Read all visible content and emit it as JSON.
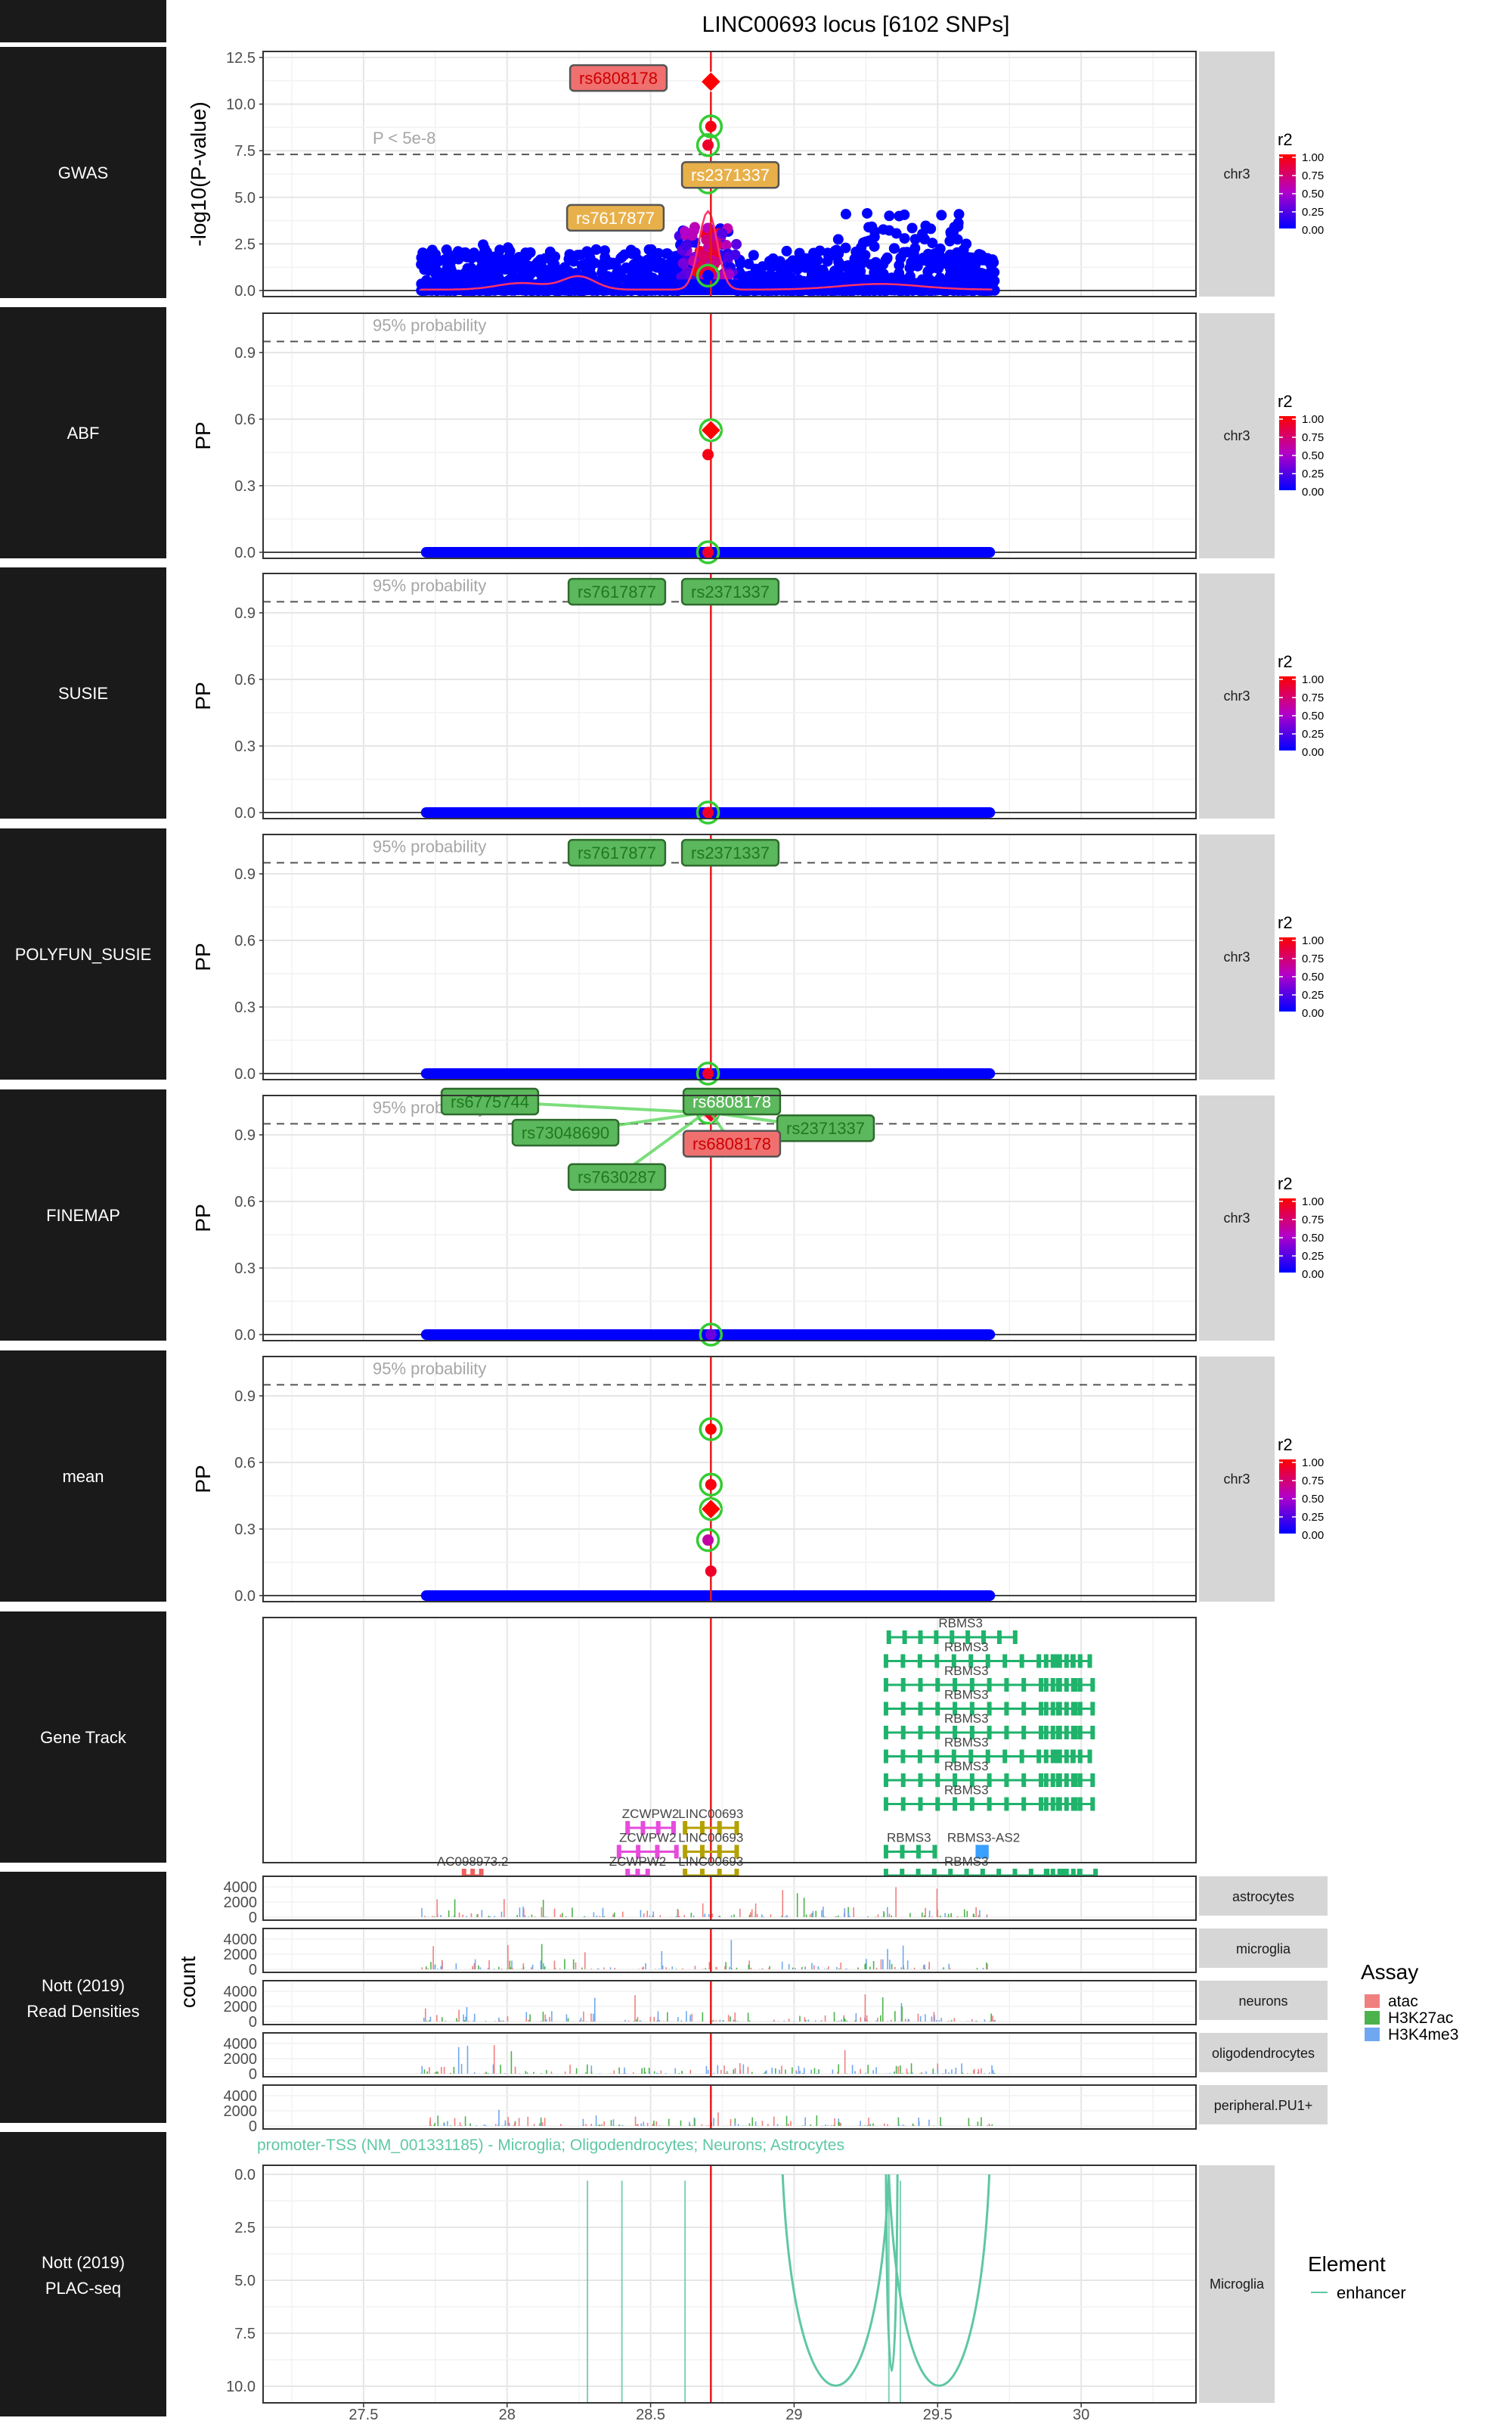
{
  "title": "LINC00693 locus [6102 SNPs]",
  "colors": {
    "row_label_bg": "#1a1a1a",
    "lead_line": "#e41a1c",
    "snp_low": "#0000ff",
    "snp_high": "#ff0000",
    "credible_ring": "#33cc33",
    "gene_green": "#1fb36b",
    "gene_magenta": "#e64bdc",
    "gene_olive": "#b3a100",
    "gene_red": "#f0605d",
    "gene_blue": "#3aa0ff",
    "plac_line": "#5ec7a5",
    "atac": "#f08080",
    "h3k27ac": "#4cb34c",
    "h3k4me3": "#6fa8f0",
    "strip_bg": "#d6d6d6"
  },
  "rows": [
    {
      "label": "GWAS",
      "strip": "chr3"
    },
    {
      "label": "ABF",
      "strip": "chr3"
    },
    {
      "label": "SUSIE",
      "strip": "chr3"
    },
    {
      "label": "POLYFUN_SUSIE",
      "strip": "chr3"
    },
    {
      "label": "FINEMAP",
      "strip": "chr3"
    },
    {
      "label": "mean",
      "strip": "chr3"
    },
    {
      "label": "Gene Track",
      "strip": ""
    },
    {
      "label": "Nott (2019)",
      "label2": "Read Densities",
      "strip": ""
    },
    {
      "label": "Nott (2019)",
      "label2": "PLAC-seq",
      "strip": "Microglia"
    }
  ],
  "r2_legend": {
    "title": "r2",
    "ticks": [
      "1.00",
      "0.75",
      "0.50",
      "0.25",
      "0.00"
    ]
  },
  "chart_data": [
    {
      "panel": "GWAS",
      "type": "scatter",
      "ylabel": "-log10(P-value)",
      "ylim": [
        0,
        12.5
      ],
      "yticks": [
        "0.0",
        "2.5",
        "5.0",
        "7.5",
        "10.0",
        "12.5"
      ],
      "threshold": {
        "y": 7.3,
        "label": "P < 5e-8"
      },
      "lead_snp_position": 28.71,
      "points": [
        {
          "x": 28.71,
          "y": 11.2,
          "r2": 1.0,
          "shape": "diamond",
          "label": "rs6808178"
        },
        {
          "x": 28.71,
          "y": 8.8,
          "r2": 0.95,
          "ring": true
        },
        {
          "x": 28.7,
          "y": 7.8,
          "r2": 0.9,
          "ring": true,
          "label": "rs2371337"
        },
        {
          "x": 28.7,
          "y": 5.8,
          "r2": 0.85,
          "ring": true,
          "label": "rs7617877"
        },
        {
          "x": 28.7,
          "y": 0.8,
          "r2": 0.0,
          "ring": true
        }
      ],
      "note": "Background of ~6100 SNPs between 27.7 and 29.7 Mb, mostly below 4.3"
    },
    {
      "panel": "ABF",
      "type": "scatter",
      "ylabel": "PP",
      "ylim": [
        0,
        1.05
      ],
      "yticks": [
        "0.0",
        "0.3",
        "0.6",
        "0.9"
      ],
      "threshold": {
        "y": 0.95,
        "label": "95% probability"
      },
      "points": [
        {
          "x": 28.71,
          "y": 0.55,
          "r2": 1.0,
          "shape": "diamond",
          "ring": true
        },
        {
          "x": 28.7,
          "y": 0.44,
          "r2": 0.95
        },
        {
          "x": 28.7,
          "y": 0.0,
          "r2": 0.9,
          "ring": true
        }
      ]
    },
    {
      "panel": "SUSIE",
      "type": "scatter",
      "ylabel": "PP",
      "ylim": [
        0,
        1.05
      ],
      "yticks": [
        "0.0",
        "0.3",
        "0.6",
        "0.9"
      ],
      "threshold": {
        "y": 0.95,
        "label": "95% probability"
      },
      "points": [
        {
          "x": 28.71,
          "y": 1.0,
          "r2": 1.0,
          "ring": true
        },
        {
          "x": 28.7,
          "y": 0.0,
          "r2": 0.9,
          "ring": true
        }
      ],
      "labels": [
        "rs7617877",
        "rs2371337"
      ]
    },
    {
      "panel": "POLYFUN_SUSIE",
      "type": "scatter",
      "ylabel": "PP",
      "ylim": [
        0,
        1.05
      ],
      "yticks": [
        "0.0",
        "0.3",
        "0.6",
        "0.9"
      ],
      "threshold": {
        "y": 0.95,
        "label": "95% probability"
      },
      "points": [
        {
          "x": 28.71,
          "y": 1.0,
          "r2": 1.0,
          "ring": true
        },
        {
          "x": 28.7,
          "y": 0.0,
          "r2": 0.9,
          "ring": true
        }
      ],
      "labels": [
        "rs7617877",
        "rs2371337"
      ]
    },
    {
      "panel": "FINEMAP",
      "type": "scatter",
      "ylabel": "PP",
      "ylim": [
        0,
        1.05
      ],
      "yticks": [
        "0.0",
        "0.3",
        "0.6",
        "0.9"
      ],
      "threshold": {
        "y": 0.95,
        "label": "95% probability"
      },
      "points": [
        {
          "x": 28.7,
          "y": 1.0,
          "r2": 1.0,
          "ring": true
        },
        {
          "x": 28.71,
          "y": 1.0,
          "r2": 0.9,
          "shape": "diamond"
        },
        {
          "x": 28.71,
          "y": 0.0,
          "r2": 0.3,
          "ring": true
        }
      ],
      "labels": [
        "rs6775744",
        "rs6808178",
        "rs73048690",
        "rs2371337",
        "rs6808178",
        "rs7630287"
      ]
    },
    {
      "panel": "mean",
      "type": "scatter",
      "ylabel": "PP",
      "ylim": [
        0,
        1.05
      ],
      "yticks": [
        "0.0",
        "0.3",
        "0.6",
        "0.9"
      ],
      "threshold": {
        "y": 0.95,
        "label": "95% probability"
      },
      "points": [
        {
          "x": 28.71,
          "y": 0.75,
          "r2": 1.0,
          "ring": true
        },
        {
          "x": 28.71,
          "y": 0.5,
          "r2": 0.95,
          "ring": true
        },
        {
          "x": 28.71,
          "y": 0.39,
          "r2": 1.0,
          "shape": "diamond",
          "ring": true
        },
        {
          "x": 28.7,
          "y": 0.25,
          "r2": 0.6,
          "ring": true
        },
        {
          "x": 28.71,
          "y": 0.11,
          "r2": 0.9
        }
      ]
    },
    {
      "panel": "Gene Track",
      "type": "table",
      "genes": [
        {
          "name": "RBMS3",
          "start": 29.33,
          "end": 29.77,
          "row": 0
        },
        {
          "name": "RBMS3",
          "start": 29.32,
          "end": 30.03,
          "row": 1
        },
        {
          "name": "RBMS3",
          "start": 29.32,
          "end": 30.04,
          "row": 2
        },
        {
          "name": "RBMS3",
          "start": 29.32,
          "end": 30.04,
          "row": 3
        },
        {
          "name": "RBMS3",
          "start": 29.32,
          "end": 30.04,
          "row": 4
        },
        {
          "name": "RBMS3",
          "start": 29.32,
          "end": 30.03,
          "row": 5
        },
        {
          "name": "RBMS3",
          "start": 29.32,
          "end": 30.04,
          "row": 6
        },
        {
          "name": "RBMS3",
          "start": 29.32,
          "end": 30.04,
          "row": 7
        },
        {
          "name": "ZCWPW2",
          "start": 28.42,
          "end": 28.58,
          "row": 8
        },
        {
          "name": "LINC00693",
          "start": 28.62,
          "end": 28.8,
          "row": 8
        },
        {
          "name": "ZCWPW2",
          "start": 28.39,
          "end": 28.59,
          "row": 9
        },
        {
          "name": "LINC00693",
          "start": 28.62,
          "end": 28.8,
          "row": 9
        },
        {
          "name": "RBMS3",
          "start": 29.32,
          "end": 29.49,
          "row": 9
        },
        {
          "name": "RBMS3-AS2",
          "start": 29.64,
          "end": 29.67,
          "row": 9
        },
        {
          "name": "AC098973.2",
          "start": 27.85,
          "end": 27.91,
          "row": 10
        },
        {
          "name": "ZCWPW2",
          "start": 28.42,
          "end": 28.49,
          "row": 10
        },
        {
          "name": "LINC00693",
          "start": 28.62,
          "end": 28.8,
          "row": 10
        },
        {
          "name": "RBMS3",
          "start": 29.32,
          "end": 30.05,
          "row": 10
        }
      ]
    },
    {
      "panel": "Nott (2019) Read Densities",
      "type": "bar",
      "ylabel": "count",
      "ylim": [
        0,
        5000
      ],
      "yticks": [
        "0",
        "2000",
        "4000"
      ],
      "tracks": [
        "astrocytes",
        "microglia",
        "neurons",
        "oligodendrocytes",
        "peripheral.PU1+"
      ],
      "legend": {
        "title": "Assay",
        "entries": [
          "atac",
          "H3K27ac",
          "H3K4me3"
        ]
      }
    },
    {
      "panel": "Nott (2019) PLAC-seq",
      "type": "line",
      "ylim": [
        0,
        10.5
      ],
      "yticks": [
        "0.0",
        "2.5",
        "5.0",
        "7.5",
        "10.0"
      ],
      "annotation": "promoter-TSS (NM_001331185) - Microglia; Oligodendrocytes; Neurons; Astrocytes",
      "legend": {
        "title": "Element",
        "entries": [
          "enhancer"
        ]
      },
      "arcs": [
        {
          "from": 28.96,
          "to": 29.33,
          "depth": 10.0
        },
        {
          "from": 29.32,
          "to": 29.36,
          "depth": 9.3
        },
        {
          "from": 29.33,
          "to": 29.68,
          "depth": 10.0
        }
      ],
      "lines": [
        28.28,
        28.4,
        28.62,
        29.33,
        29.37
      ]
    }
  ],
  "x_axis": {
    "xlim": [
      27.15,
      30.4
    ],
    "ticks": [
      "27.5",
      "28",
      "28.5",
      "29",
      "29.5",
      "30"
    ],
    "tick_values": [
      27.5,
      28.0,
      28.5,
      29.0,
      29.5,
      30.0
    ]
  }
}
